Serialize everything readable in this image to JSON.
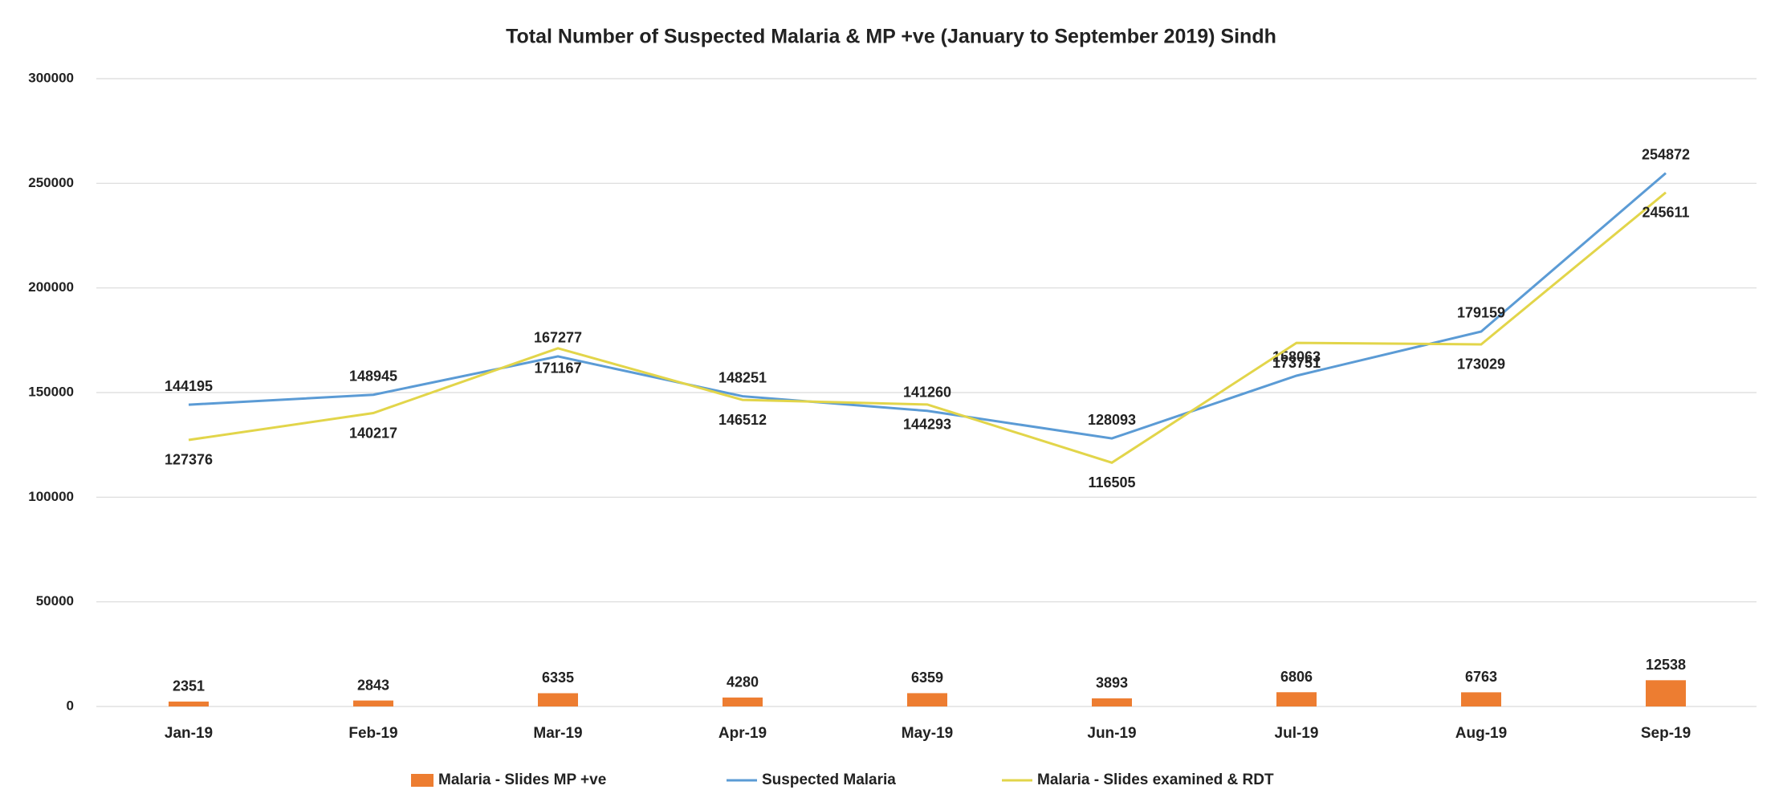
{
  "chart_data": {
    "type": "bar_line",
    "title": "Total Number of Suspected Malaria & MP +ve (January to September 2019) Sindh",
    "categories": [
      "Jan-19",
      "Feb-19",
      "Mar-19",
      "Apr-19",
      "May-19",
      "Jun-19",
      "Jul-19",
      "Aug-19",
      "Sep-19"
    ],
    "series": [
      {
        "name": "Malaria - Slides MP +ve",
        "type": "bar",
        "color": "#ed7d31",
        "values": [
          2351,
          2843,
          6335,
          4280,
          6359,
          3893,
          6806,
          6763,
          12538
        ]
      },
      {
        "name": "Suspected Malaria",
        "type": "line",
        "color": "#5b9bd5",
        "values": [
          144195,
          148945,
          167277,
          148251,
          141260,
          128093,
          158063,
          179159,
          254872
        ]
      },
      {
        "name": "Malaria - Slides examined & RDT",
        "type": "line",
        "color": "#e2d54a",
        "values": [
          127376,
          140217,
          171167,
          146512,
          144293,
          116505,
          173751,
          173029,
          245611
        ]
      }
    ],
    "ylim": [
      0,
      300000
    ],
    "yticks": [
      0,
      50000,
      100000,
      150000,
      200000,
      250000,
      300000
    ],
    "grid": true,
    "legend": "bottom"
  }
}
